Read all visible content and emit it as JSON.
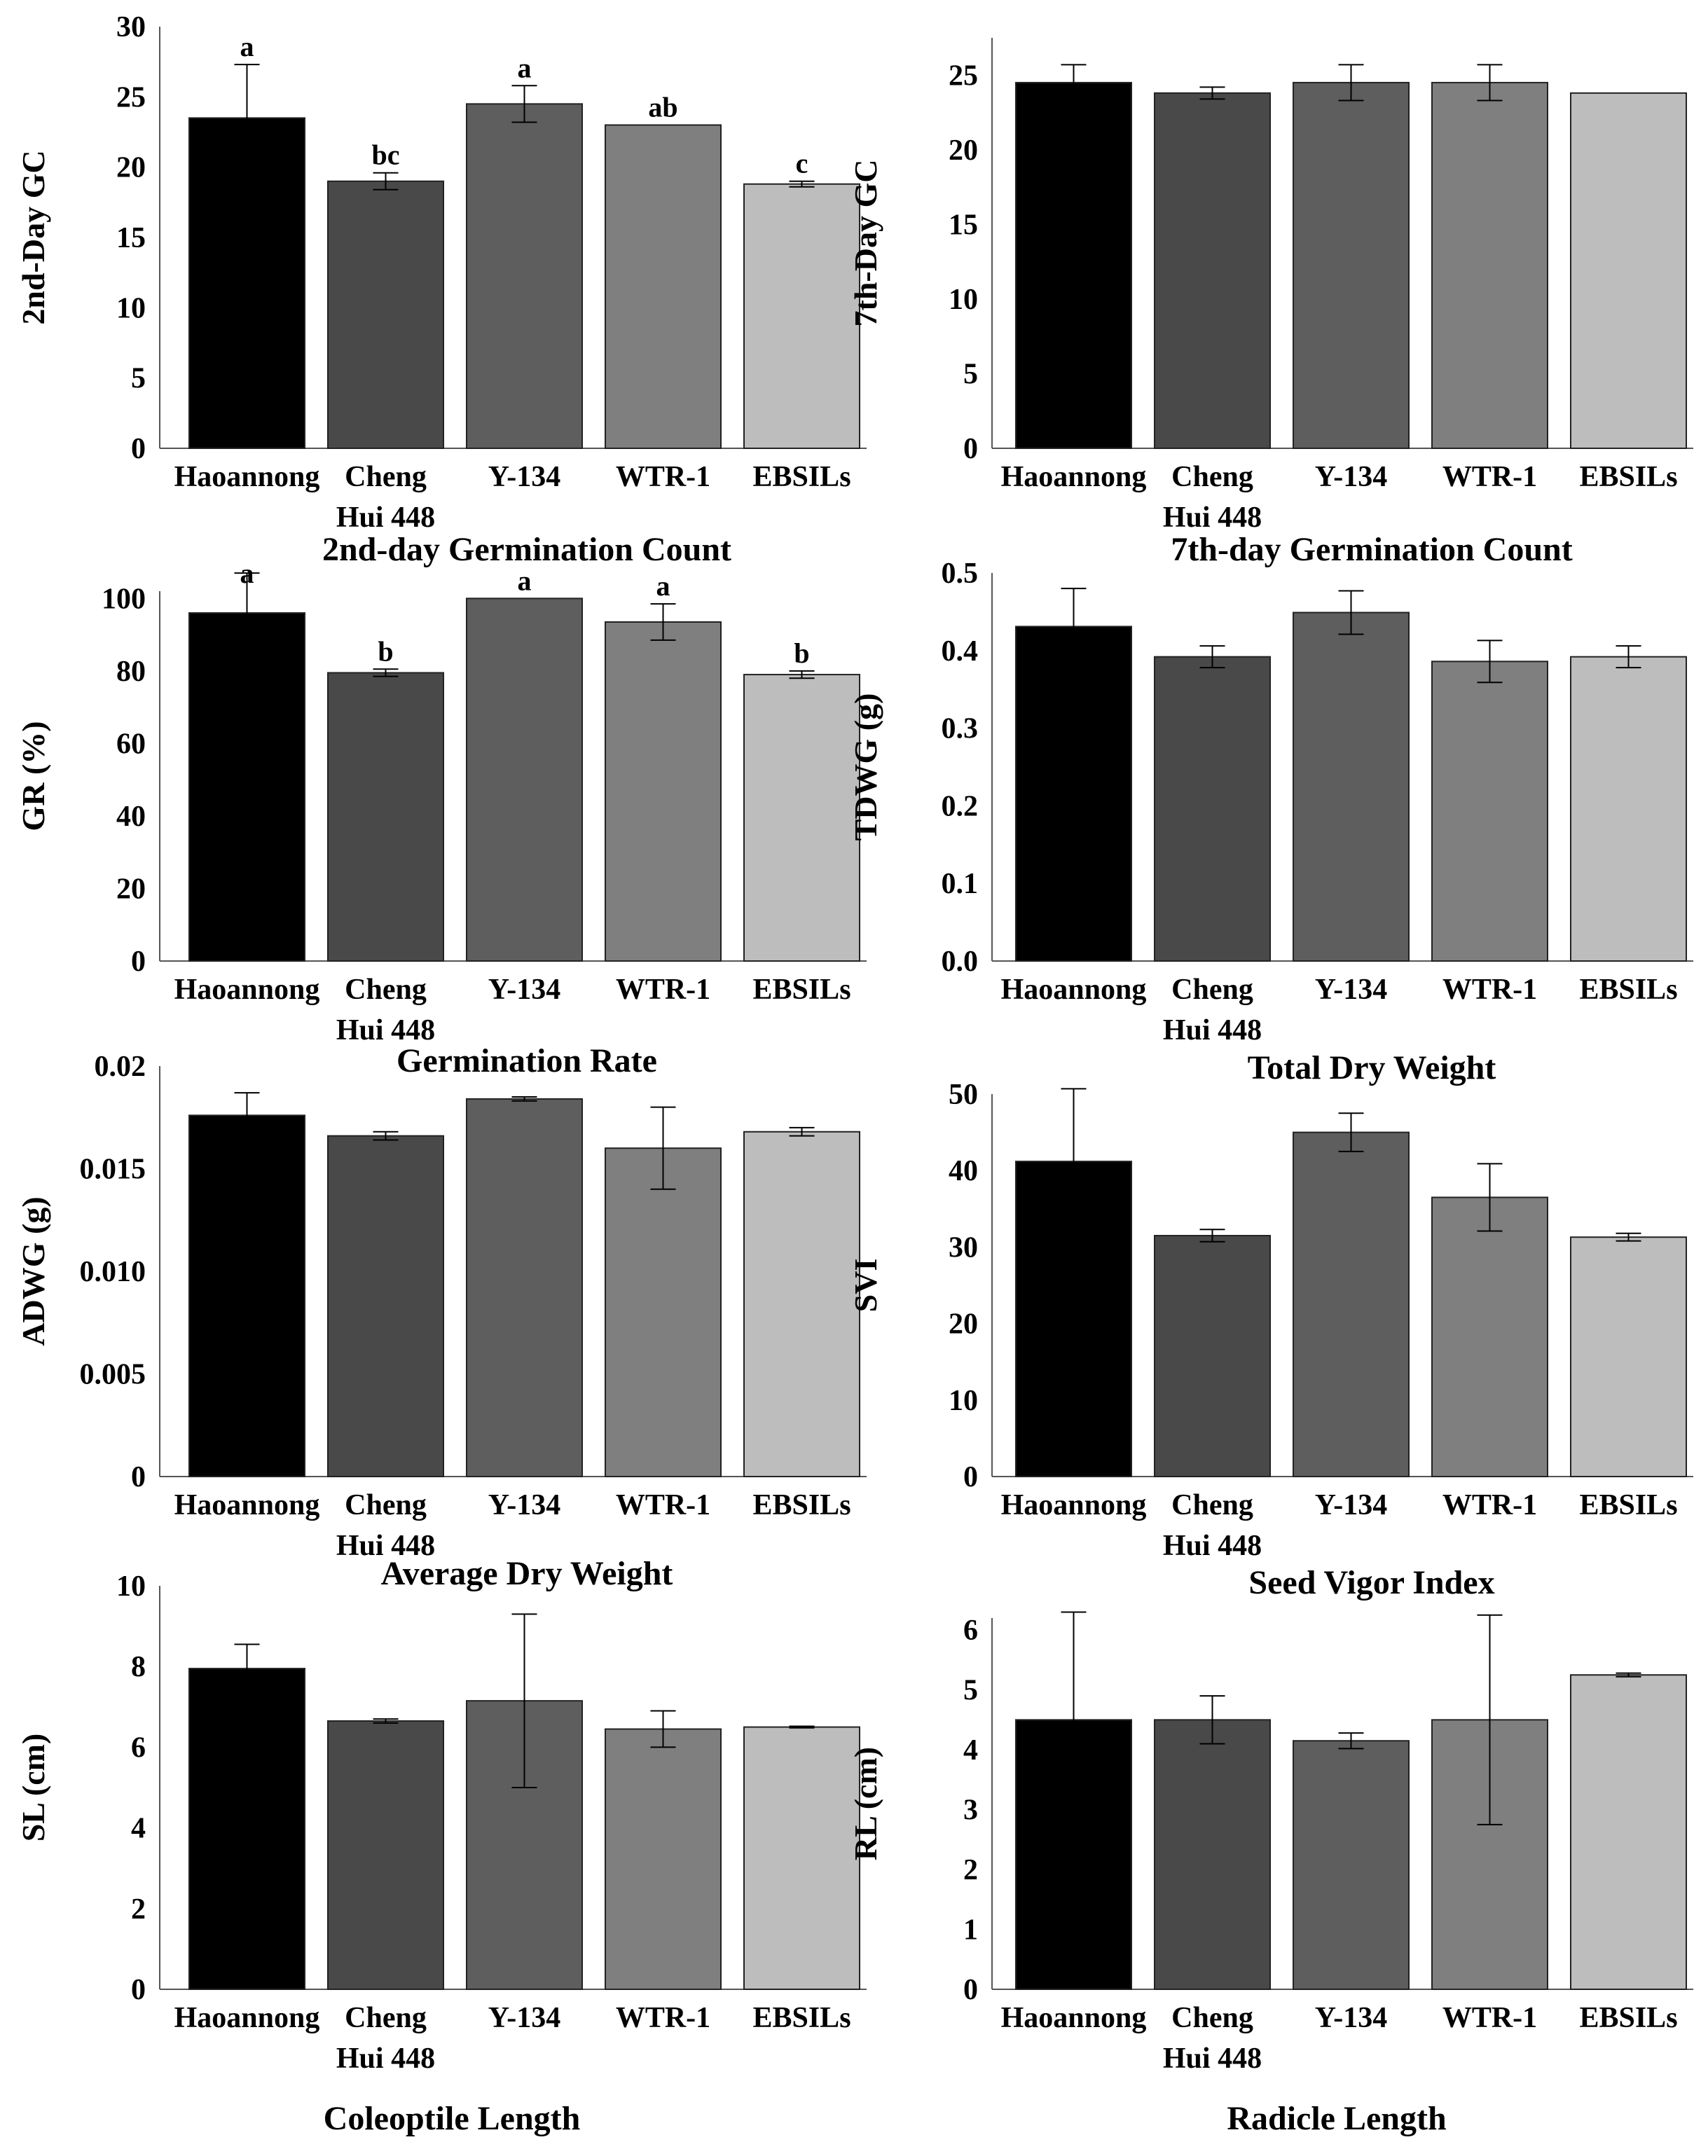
{
  "colors": [
    "#000000",
    "#494949",
    "#5e5e5e",
    "#7f7f7f",
    "#bdbdbd"
  ],
  "chart_data": [
    {
      "type": "bar",
      "ylabel": "2nd-Day GC",
      "title": "2nd-day Germination Count",
      "categories": [
        [
          "Haoannong"
        ],
        [
          "Cheng",
          "Hui 448"
        ],
        [
          "Y-134"
        ],
        [
          "WTR-1"
        ],
        [
          "EBSILs"
        ]
      ],
      "values": [
        23.5,
        19,
        24.5,
        23,
        18.8
      ],
      "errors": [
        3.8,
        0.6,
        1.3,
        0,
        0.2
      ],
      "letters": [
        "a",
        "bc",
        "a",
        "ab",
        "c"
      ],
      "ylim": [
        0,
        30
      ],
      "ticks": [
        "0",
        "5",
        "10",
        "15",
        "20",
        "25",
        "30"
      ]
    },
    {
      "type": "bar",
      "ylabel": "7th-Day GC",
      "title": "7th-day Germination Count",
      "categories": [
        [
          "Haoannong"
        ],
        [
          "Cheng",
          "Hui 448"
        ],
        [
          "Y-134"
        ],
        [
          "WTR-1"
        ],
        [
          "EBSILs"
        ]
      ],
      "values": [
        24.5,
        23.8,
        24.5,
        24.5,
        23.8
      ],
      "errors": [
        1.2,
        0.4,
        1.2,
        1.2,
        0
      ],
      "letters": [],
      "ylim": [
        0,
        27.5
      ],
      "ticks": [
        "0",
        "5",
        "10",
        "15",
        "20",
        "25"
      ]
    },
    {
      "type": "bar",
      "ylabel": "GR (%)",
      "title": "Germination Rate",
      "categories": [
        [
          "Haoannong"
        ],
        [
          "Cheng",
          "Hui 448"
        ],
        [
          "Y-134"
        ],
        [
          "WTR-1"
        ],
        [
          "EBSILs"
        ]
      ],
      "values": [
        96,
        79.5,
        100,
        93.5,
        79
      ],
      "errors": [
        11,
        1,
        0,
        5,
        1
      ],
      "letters": [
        "a",
        "b",
        "a",
        "a",
        "b"
      ],
      "ylim": [
        0,
        102
      ],
      "ticks": [
        "0",
        "20",
        "40",
        "60",
        "80",
        "100"
      ]
    },
    {
      "type": "bar",
      "ylabel": "TDWG (g)",
      "title": "Total Dry Weight",
      "categories": [
        [
          "Haoannong"
        ],
        [
          "Cheng",
          "Hui 448"
        ],
        [
          "Y-134"
        ],
        [
          "WTR-1"
        ],
        [
          "EBSILs"
        ]
      ],
      "values": [
        0.431,
        0.392,
        0.449,
        0.386,
        0.392
      ],
      "errors": [
        0.049,
        0.014,
        0.028,
        0.027,
        0.014
      ],
      "letters": [],
      "ylim": [
        0,
        0.5
      ],
      "ticks": [
        "0.0",
        "0.1",
        "0.2",
        "0.3",
        "0.4",
        "0.5"
      ]
    },
    {
      "type": "bar",
      "ylabel": "ADWG (g)",
      "title": "Average Dry Weight",
      "categories": [
        [
          "Haoannong"
        ],
        [
          "Cheng",
          "Hui 448"
        ],
        [
          "Y-134"
        ],
        [
          "WTR-1"
        ],
        [
          "EBSILs"
        ]
      ],
      "values": [
        0.0176,
        0.0166,
        0.0184,
        0.016,
        0.0168
      ],
      "errors": [
        0.0011,
        0.0002,
        0.0001,
        0.002,
        0.0002
      ],
      "letters": [],
      "ylim": [
        0,
        0.02
      ],
      "ticks": [
        "0",
        "0.005",
        "0.010",
        "0.015",
        "0.02"
      ]
    },
    {
      "type": "bar",
      "ylabel": "SVI",
      "title": "Seed Vigor Index",
      "categories": [
        [
          "Haoannong"
        ],
        [
          "Cheng",
          "Hui 448"
        ],
        [
          "Y-134"
        ],
        [
          "WTR-1"
        ],
        [
          "EBSILs"
        ]
      ],
      "values": [
        41.2,
        31.5,
        45,
        36.5,
        31.3
      ],
      "errors": [
        9.5,
        0.8,
        2.5,
        4.4,
        0.5
      ],
      "letters": [],
      "ylim": [
        0,
        50
      ],
      "ticks": [
        "0",
        "10",
        "20",
        "30",
        "40",
        "50"
      ]
    },
    {
      "type": "bar",
      "ylabel": "SL (cm)",
      "title": "Coleoptile Length",
      "categories": [
        [
          "Haoannong"
        ],
        [
          "Cheng",
          "Hui 448"
        ],
        [
          "Y-134"
        ],
        [
          "WTR-1"
        ],
        [
          "EBSILs"
        ]
      ],
      "values": [
        7.95,
        6.65,
        7.15,
        6.45,
        6.5
      ],
      "errors": [
        0.6,
        0.05,
        2.15,
        0.45,
        0.02
      ],
      "letters": [],
      "ylim": [
        0,
        10
      ],
      "ticks": [
        "0",
        "2",
        "4",
        "6",
        "8",
        "10"
      ]
    },
    {
      "type": "bar",
      "ylabel": "RL (cm)",
      "title": "Radicle Length",
      "categories": [
        [
          "Haoannong"
        ],
        [
          "Cheng",
          "Hui 448"
        ],
        [
          "Y-134"
        ],
        [
          "WTR-1"
        ],
        [
          "EBSILs"
        ]
      ],
      "values": [
        4.5,
        4.5,
        4.15,
        4.5,
        5.25
      ],
      "errors": [
        1.8,
        0.4,
        0.13,
        1.75,
        0.03
      ],
      "letters": [],
      "ylim": [
        0,
        6.2
      ],
      "ticks": [
        "0",
        "1",
        "2",
        "3",
        "4",
        "5",
        "6"
      ]
    }
  ]
}
